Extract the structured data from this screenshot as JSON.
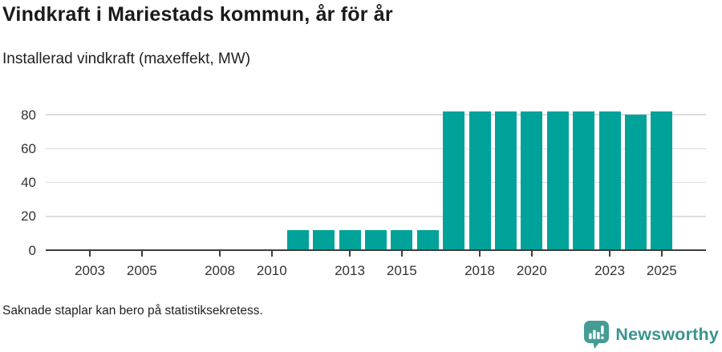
{
  "header": {
    "title": "Vindkraft i Mariestads kommun, år för år",
    "subtitle": "Installerad vindkraft (maxeffekt, MW)"
  },
  "footer": {
    "note": "Saknade staplar kan bero på statistiksekretess.",
    "brand": "Newsworthy"
  },
  "colors": {
    "bar": "#00a29a",
    "axis": "#3d3d3d",
    "gridline": "#dddddd",
    "brand_teal": "#459c95",
    "title_text": "#1a1a1a",
    "tick_label": "#333333"
  },
  "chart_data": {
    "type": "bar",
    "title": "Vindkraft i Mariestads kommun, år för år",
    "subtitle": "Installerad vindkraft (maxeffekt, MW)",
    "unit": "MW",
    "categories": [
      2002,
      2003,
      2004,
      2005,
      2006,
      2007,
      2008,
      2009,
      2010,
      2011,
      2012,
      2013,
      2014,
      2015,
      2016,
      2017,
      2018,
      2019,
      2020,
      2021,
      2022,
      2023,
      2024,
      2025
    ],
    "values": [
      null,
      null,
      null,
      null,
      null,
      null,
      null,
      null,
      null,
      12,
      12,
      12,
      12,
      12,
      12,
      82,
      82,
      82,
      82,
      82,
      82,
      82,
      80,
      82
    ],
    "y_ticks": [
      0,
      20,
      40,
      60,
      80
    ],
    "x_ticks": [
      2003,
      2005,
      2008,
      2010,
      2013,
      2015,
      2018,
      2020,
      2023,
      2025
    ],
    "ylim": [
      0,
      87
    ],
    "xlabel": "",
    "ylabel": "",
    "grid": "horizontal",
    "legend": "none",
    "annotation": "Saknade staplar kan bero på statistiksekretess."
  }
}
